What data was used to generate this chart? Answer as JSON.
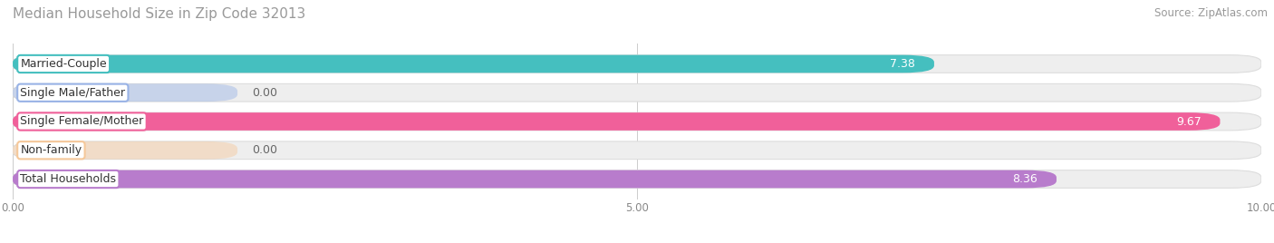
{
  "title": "Median Household Size in Zip Code 32013",
  "source": "Source: ZipAtlas.com",
  "categories": [
    "Married-Couple",
    "Single Male/Father",
    "Single Female/Mother",
    "Non-family",
    "Total Households"
  ],
  "values": [
    7.38,
    0.0,
    9.67,
    0.0,
    8.36
  ],
  "bar_colors": [
    "#45bfbf",
    "#99b3e6",
    "#f0609a",
    "#f5c89a",
    "#b87ccc"
  ],
  "label_edge_colors": [
    "#45bfbf",
    "#99b3e6",
    "#f0609a",
    "#f5c89a",
    "#b87ccc"
  ],
  "xlim": [
    0,
    10.0
  ],
  "xticks": [
    0.0,
    5.0,
    10.0
  ],
  "xtick_labels": [
    "0.00",
    "5.00",
    "10.00"
  ],
  "bar_height": 0.62,
  "background_color": "#ffffff",
  "track_color": "#eeeeee",
  "title_fontsize": 11,
  "source_fontsize": 8.5,
  "label_fontsize": 9,
  "value_fontsize": 9
}
